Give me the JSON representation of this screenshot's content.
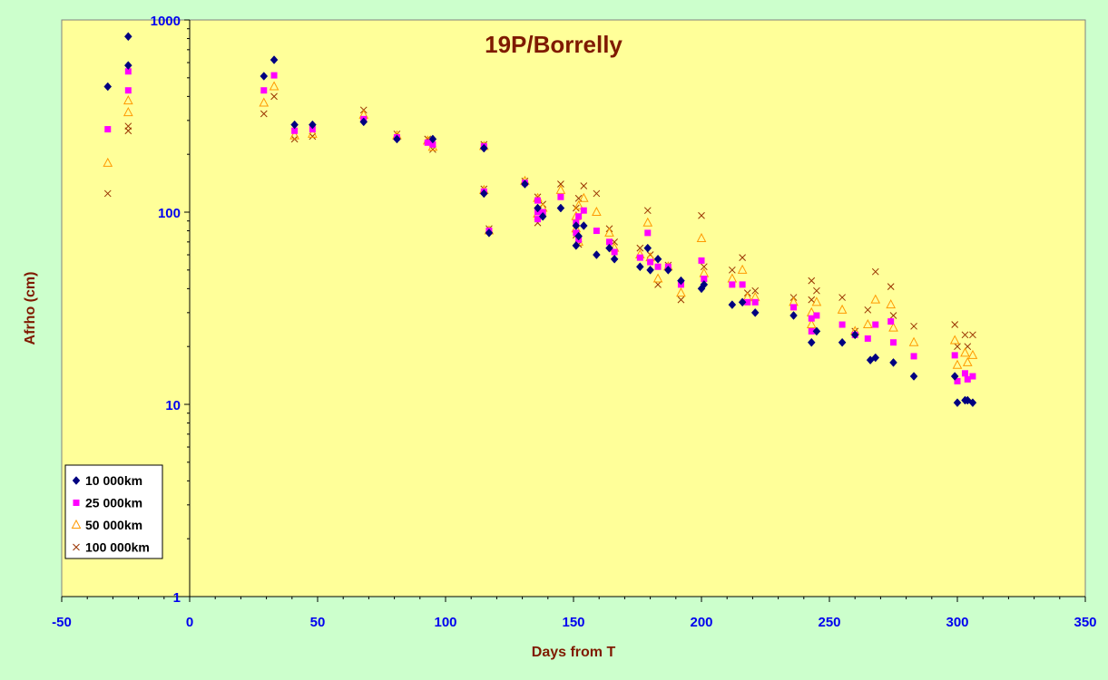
{
  "chart_data": {
    "type": "scatter",
    "title": "19P/Borrelly",
    "xlabel": "Days from T",
    "ylabel": "Afrho (cm)",
    "xlim": [
      -50,
      350
    ],
    "ylim": [
      1,
      1000
    ],
    "yscale": "log",
    "x_ticks": [
      "-50",
      "0",
      "50",
      "100",
      "150",
      "200",
      "250",
      "300",
      "350"
    ],
    "y_ticks": [
      "1",
      "10",
      "100",
      "1000"
    ],
    "grid": false,
    "legend_position": "bottom-left",
    "colors": {
      "background": "#ccffcc",
      "plot_area": "#ffff99",
      "axis_title": "#7f1a00",
      "tick_label": "#0000ee"
    },
    "series": [
      {
        "name": "10 000km",
        "marker": "diamond",
        "color": "#000080",
        "points": [
          [
            -32,
            450
          ],
          [
            -24,
            580
          ],
          [
            -24,
            820
          ],
          [
            29,
            510
          ],
          [
            33,
            620
          ],
          [
            41,
            285
          ],
          [
            48,
            285
          ],
          [
            68,
            295
          ],
          [
            81,
            240
          ],
          [
            95,
            240
          ],
          [
            115,
            215
          ],
          [
            115,
            125
          ],
          [
            117,
            78
          ],
          [
            131,
            140
          ],
          [
            136,
            105
          ],
          [
            138,
            95
          ],
          [
            145,
            105
          ],
          [
            151,
            85
          ],
          [
            151,
            67
          ],
          [
            152,
            75
          ],
          [
            154,
            85
          ],
          [
            159,
            60
          ],
          [
            164,
            65
          ],
          [
            166,
            57
          ],
          [
            176,
            52
          ],
          [
            179,
            65
          ],
          [
            180,
            50
          ],
          [
            183,
            57
          ],
          [
            187,
            50
          ],
          [
            192,
            44
          ],
          [
            200,
            40
          ],
          [
            201,
            42
          ],
          [
            212,
            33
          ],
          [
            216,
            34
          ],
          [
            221,
            30
          ],
          [
            236,
            29
          ],
          [
            243,
            21
          ],
          [
            245,
            24
          ],
          [
            255,
            21
          ],
          [
            260,
            23
          ],
          [
            266,
            17
          ],
          [
            268,
            17.5
          ],
          [
            275,
            16.5
          ],
          [
            283,
            14
          ],
          [
            299,
            14
          ],
          [
            300,
            10.2
          ],
          [
            303,
            10.5
          ],
          [
            304,
            10.5
          ],
          [
            306,
            10.2
          ]
        ]
      },
      {
        "name": "25 000km",
        "marker": "square",
        "color": "#ff00ff",
        "points": [
          [
            -32,
            270
          ],
          [
            -24,
            430
          ],
          [
            -24,
            540
          ],
          [
            29,
            430
          ],
          [
            33,
            515
          ],
          [
            41,
            265
          ],
          [
            48,
            270
          ],
          [
            68,
            305
          ],
          [
            81,
            245
          ],
          [
            93,
            230
          ],
          [
            95,
            225
          ],
          [
            115,
            220
          ],
          [
            115,
            128
          ],
          [
            117,
            80
          ],
          [
            131,
            142
          ],
          [
            136,
            115
          ],
          [
            136,
            100
          ],
          [
            136,
            92
          ],
          [
            138,
            100
          ],
          [
            145,
            120
          ],
          [
            151,
            88
          ],
          [
            151,
            78
          ],
          [
            152,
            95
          ],
          [
            152,
            72
          ],
          [
            154,
            102
          ],
          [
            159,
            80
          ],
          [
            164,
            70
          ],
          [
            166,
            62
          ],
          [
            176,
            58
          ],
          [
            179,
            78
          ],
          [
            180,
            55
          ],
          [
            183,
            52
          ],
          [
            187,
            52
          ],
          [
            192,
            42
          ],
          [
            200,
            56
          ],
          [
            201,
            45
          ],
          [
            212,
            42
          ],
          [
            216,
            42
          ],
          [
            218,
            34
          ],
          [
            221,
            34
          ],
          [
            236,
            32
          ],
          [
            243,
            24
          ],
          [
            243,
            28
          ],
          [
            245,
            29
          ],
          [
            255,
            26
          ],
          [
            260,
            23
          ],
          [
            265,
            22
          ],
          [
            268,
            26
          ],
          [
            274,
            27
          ],
          [
            275,
            21
          ],
          [
            283,
            17.8
          ],
          [
            299,
            18
          ],
          [
            300,
            13.2
          ],
          [
            303,
            14.5
          ],
          [
            304,
            13.5
          ],
          [
            306,
            14
          ]
        ]
      },
      {
        "name": "50 000km",
        "marker": "triangle",
        "color": "#ff9900",
        "points": [
          [
            -32,
            180
          ],
          [
            -24,
            330
          ],
          [
            -24,
            380
          ],
          [
            29,
            370
          ],
          [
            33,
            450
          ],
          [
            41,
            250
          ],
          [
            48,
            255
          ],
          [
            68,
            320
          ],
          [
            81,
            250
          ],
          [
            93,
            235
          ],
          [
            95,
            218
          ],
          [
            115,
            220
          ],
          [
            115,
            130
          ],
          [
            117,
            80
          ],
          [
            131,
            145
          ],
          [
            136,
            118
          ],
          [
            136,
            98
          ],
          [
            138,
            105
          ],
          [
            145,
            130
          ],
          [
            151,
            95
          ],
          [
            151,
            82
          ],
          [
            152,
            108
          ],
          [
            152,
            70
          ],
          [
            154,
            118
          ],
          [
            159,
            100
          ],
          [
            164,
            78
          ],
          [
            166,
            65
          ],
          [
            176,
            60
          ],
          [
            179,
            88
          ],
          [
            180,
            58
          ],
          [
            183,
            45
          ],
          [
            187,
            52
          ],
          [
            192,
            38
          ],
          [
            200,
            73
          ],
          [
            201,
            48
          ],
          [
            212,
            45
          ],
          [
            216,
            50
          ],
          [
            218,
            36
          ],
          [
            221,
            36
          ],
          [
            236,
            34
          ],
          [
            243,
            30
          ],
          [
            243,
            26
          ],
          [
            245,
            34
          ],
          [
            255,
            31
          ],
          [
            260,
            24
          ],
          [
            265,
            26
          ],
          [
            268,
            35
          ],
          [
            274,
            33
          ],
          [
            275,
            25
          ],
          [
            283,
            21
          ],
          [
            299,
            21.5
          ],
          [
            300,
            16
          ],
          [
            303,
            18.5
          ],
          [
            304,
            16.5
          ],
          [
            306,
            18
          ]
        ]
      },
      {
        "name": "100 000km",
        "marker": "x",
        "color": "#993300",
        "points": [
          [
            -32,
            125
          ],
          [
            -24,
            265
          ],
          [
            -24,
            280
          ],
          [
            29,
            325
          ],
          [
            33,
            400
          ],
          [
            41,
            240
          ],
          [
            48,
            248
          ],
          [
            68,
            340
          ],
          [
            81,
            255
          ],
          [
            93,
            240
          ],
          [
            95,
            212
          ],
          [
            115,
            225
          ],
          [
            115,
            132
          ],
          [
            117,
            82
          ],
          [
            131,
            145
          ],
          [
            136,
            120
          ],
          [
            136,
            88
          ],
          [
            138,
            110
          ],
          [
            145,
            140
          ],
          [
            151,
            105
          ],
          [
            151,
            76
          ],
          [
            152,
            118
          ],
          [
            152,
            68
          ],
          [
            154,
            137
          ],
          [
            159,
            125
          ],
          [
            164,
            82
          ],
          [
            166,
            70
          ],
          [
            176,
            65
          ],
          [
            179,
            102
          ],
          [
            180,
            60
          ],
          [
            183,
            42
          ],
          [
            187,
            53
          ],
          [
            192,
            35
          ],
          [
            200,
            96
          ],
          [
            201,
            52
          ],
          [
            212,
            50
          ],
          [
            216,
            58
          ],
          [
            218,
            38
          ],
          [
            221,
            39
          ],
          [
            236,
            36
          ],
          [
            243,
            44
          ],
          [
            243,
            35
          ],
          [
            245,
            39
          ],
          [
            255,
            36
          ],
          [
            260,
            24
          ],
          [
            265,
            31
          ],
          [
            268,
            49
          ],
          [
            274,
            41
          ],
          [
            275,
            29
          ],
          [
            283,
            25.5
          ],
          [
            299,
            26
          ],
          [
            300,
            20
          ],
          [
            303,
            23
          ],
          [
            304,
            20
          ],
          [
            306,
            23
          ]
        ]
      }
    ]
  }
}
